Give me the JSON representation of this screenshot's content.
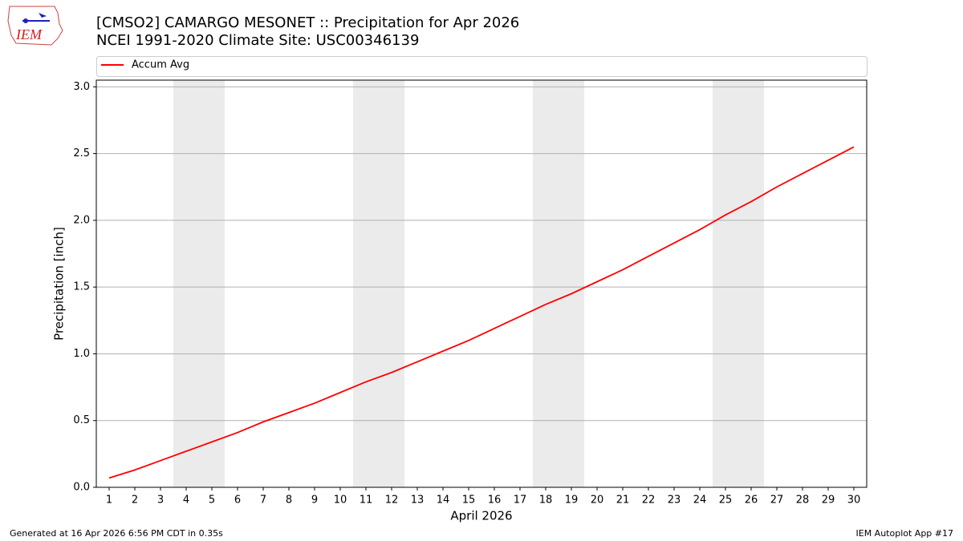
{
  "logo_text": "IEM",
  "footer_left": "Generated at 16 Apr 2026 6:56 PM CDT in 0.35s",
  "footer_right": "IEM Autoplot App #17",
  "chart_data": {
    "type": "line",
    "title": "[CMSO2] CAMARGO MESONET :: Precipitation for Apr 2026",
    "subtitle": "NCEI 1991-2020 Climate Site: USC00346139",
    "x_label": "April 2026",
    "y_label": "Precipitation [inch]",
    "x": [
      1,
      2,
      3,
      4,
      5,
      6,
      7,
      8,
      9,
      10,
      11,
      12,
      13,
      14,
      15,
      16,
      17,
      18,
      19,
      20,
      21,
      22,
      23,
      24,
      25,
      26,
      27,
      28,
      29,
      30
    ],
    "series": [
      {
        "name": "Accum Avg",
        "color": "#ff0000",
        "values": [
          0.07,
          0.13,
          0.2,
          0.27,
          0.34,
          0.41,
          0.49,
          0.56,
          0.63,
          0.71,
          0.79,
          0.86,
          0.94,
          1.02,
          1.1,
          1.19,
          1.28,
          1.37,
          1.45,
          1.54,
          1.63,
          1.73,
          1.83,
          1.93,
          2.04,
          2.14,
          2.25,
          2.35,
          2.45,
          2.55
        ]
      }
    ],
    "xlim": [
      0.5,
      30.5
    ],
    "xticks": [
      1,
      2,
      3,
      4,
      5,
      6,
      7,
      8,
      9,
      10,
      11,
      12,
      13,
      14,
      15,
      16,
      17,
      18,
      19,
      20,
      21,
      22,
      23,
      24,
      25,
      26,
      27,
      28,
      29,
      30
    ],
    "ylim": [
      0,
      3.05
    ],
    "yticks": [
      {
        "value": 0,
        "label": "0.0"
      },
      0.5,
      {
        "value": 1,
        "label": "1.0"
      },
      1.5,
      {
        "value": 2,
        "label": "2.0"
      },
      2.5,
      {
        "value": 3,
        "label": "3.0"
      }
    ],
    "grid": "y",
    "shaded_spans": [
      [
        3.5,
        5.5
      ],
      [
        10.5,
        12.5
      ],
      [
        17.5,
        19.5
      ],
      [
        24.5,
        26.5
      ]
    ],
    "shade_color": "#ebebeb",
    "legend": "top"
  }
}
